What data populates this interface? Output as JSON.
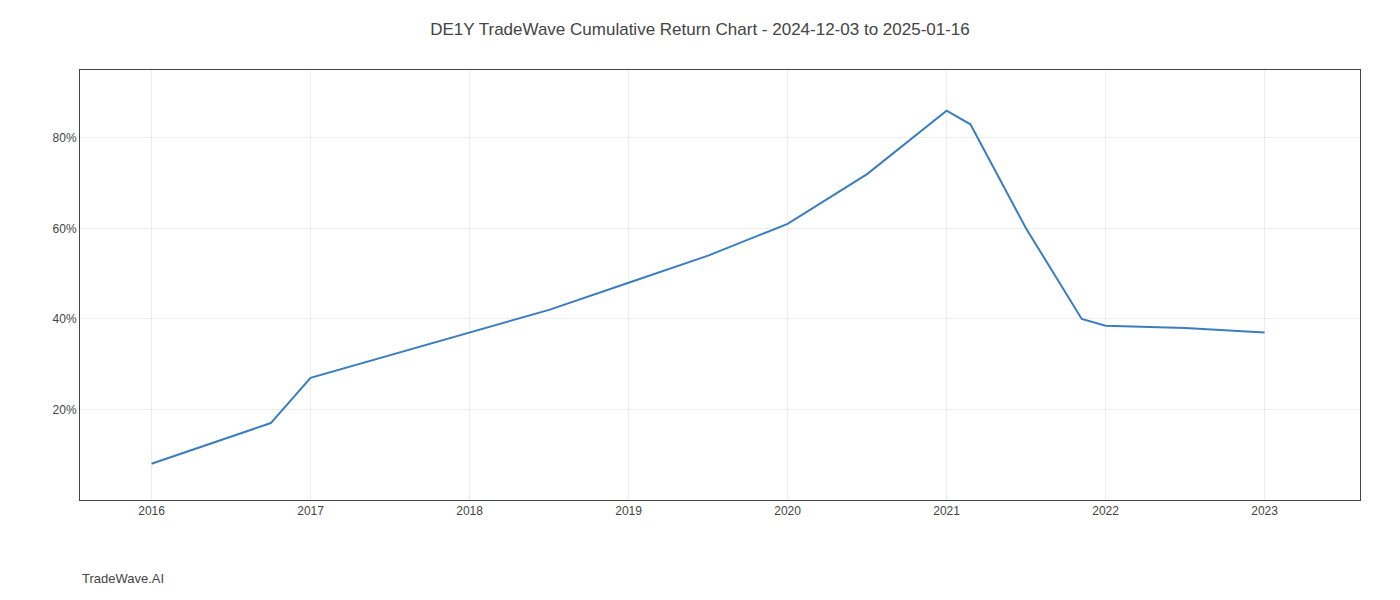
{
  "chart_data": {
    "type": "line",
    "title": "DE1Y TradeWave Cumulative Return Chart - 2024-12-03 to 2025-01-16",
    "x": [
      2016.0,
      2016.75,
      2017.0,
      2017.5,
      2018.0,
      2018.5,
      2019.0,
      2019.5,
      2020.0,
      2020.5,
      2021.0,
      2021.15,
      2021.5,
      2021.85,
      2022.0,
      2022.5,
      2023.0
    ],
    "values": [
      8,
      17,
      27,
      32,
      37,
      42,
      48,
      54,
      61,
      72,
      86,
      83,
      60,
      40,
      38.5,
      38,
      37
    ],
    "color": "#3a7ebf",
    "xlim": [
      2015.55,
      2023.6
    ],
    "ylim": [
      0,
      95
    ],
    "xticks": [
      2016,
      2017,
      2018,
      2019,
      2020,
      2021,
      2022,
      2023
    ],
    "yticks": [
      {
        "value": 20,
        "label": "20%"
      },
      {
        "value": 40,
        "label": "40%"
      },
      {
        "value": 60,
        "label": "60%"
      },
      {
        "value": 80,
        "label": "80%"
      }
    ],
    "grid": true,
    "annotations": [
      {
        "text": "TradeWave.AI"
      }
    ]
  }
}
